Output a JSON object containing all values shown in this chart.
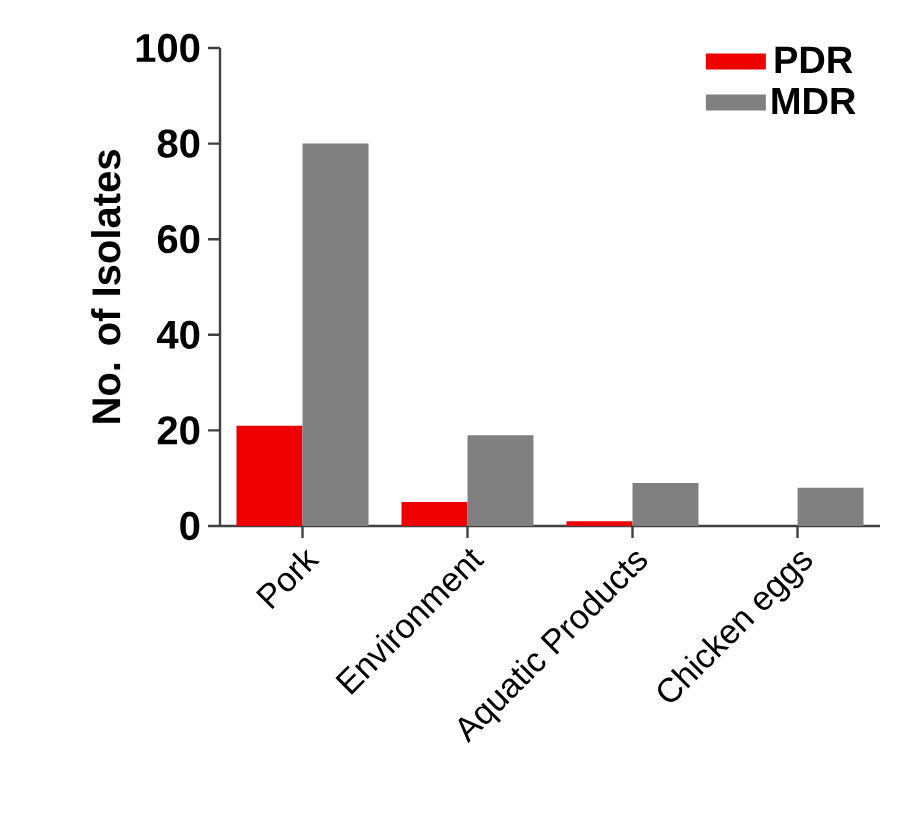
{
  "chart_data": {
    "type": "bar",
    "ylabel": "No. of Isolates",
    "categories": [
      "Pork",
      "Environment",
      "Aquatic Products",
      "Chicken eggs"
    ],
    "series": [
      {
        "name": "PDR",
        "color": "#ee0000",
        "values": [
          21,
          5,
          1,
          0
        ]
      },
      {
        "name": "MDR",
        "color": "#808080",
        "values": [
          80,
          19,
          9,
          8
        ]
      }
    ],
    "ylim": [
      0,
      100
    ],
    "yticks": [
      0,
      20,
      40,
      60,
      80,
      100
    ],
    "grid": false,
    "legend": "top right"
  }
}
